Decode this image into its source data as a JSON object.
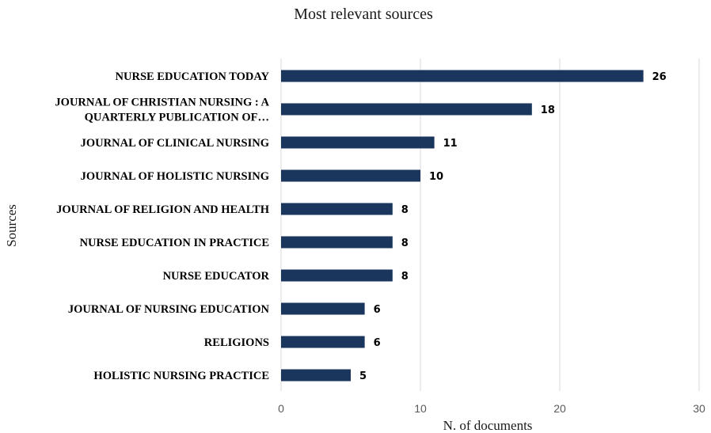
{
  "chart_data": {
    "type": "bar",
    "orientation": "horizontal",
    "title": "Most relevant sources",
    "xlabel": "N. of documents",
    "ylabel": "Sources",
    "xlim": [
      0,
      30
    ],
    "x_ticks": [
      0,
      10,
      20,
      30
    ],
    "grid": true,
    "legend": "none",
    "bar_color": "#1b365d",
    "categories": [
      [
        "NURSE EDUCATION TODAY"
      ],
      [
        "JOURNAL OF CHRISTIAN NURSING : A",
        "QUARTERLY PUBLICATION OF…"
      ],
      [
        "JOURNAL OF CLINICAL NURSING"
      ],
      [
        "JOURNAL OF HOLISTIC NURSING"
      ],
      [
        "JOURNAL OF RELIGION AND HEALTH"
      ],
      [
        "NURSE EDUCATION IN PRACTICE"
      ],
      [
        "NURSE EDUCATOR"
      ],
      [
        "JOURNAL OF NURSING EDUCATION"
      ],
      [
        "RELIGIONS"
      ],
      [
        "HOLISTIC NURSING PRACTICE"
      ]
    ],
    "values": [
      26,
      18,
      11,
      10,
      8,
      8,
      8,
      6,
      6,
      5
    ]
  }
}
